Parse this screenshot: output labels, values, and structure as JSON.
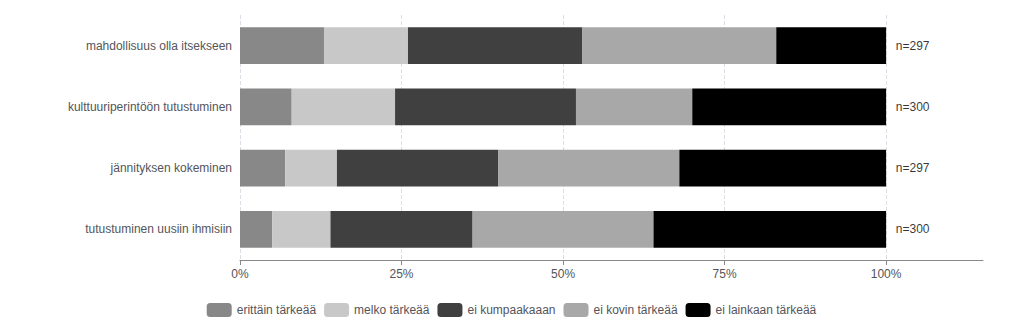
{
  "chart_data": {
    "type": "bar",
    "orientation": "horizontal",
    "stacked": true,
    "categories": [
      "mahdollisuus olla itsekseen",
      "kulttuuriperintöön tutustuminen",
      "jännityksen kokeminen",
      "tutustuminen uusiin ihmisiin"
    ],
    "series": [
      {
        "name": "erittäin tärkeää",
        "color": "#888888",
        "values": [
          13,
          8,
          7,
          5
        ]
      },
      {
        "name": "melko tärkeää",
        "color": "#c8c8c8",
        "values": [
          13,
          16,
          8,
          9
        ]
      },
      {
        "name": "ei kumpaakaaan",
        "color": "#404040",
        "values": [
          27,
          28,
          25,
          22
        ]
      },
      {
        "name": "ei kovin tärkeää",
        "color": "#a8a8a8",
        "values": [
          30,
          18,
          28,
          28
        ]
      },
      {
        "name": "ei lainkaan tärkeää",
        "color": "#000000",
        "values": [
          17,
          30,
          32,
          36
        ]
      }
    ],
    "annotations": [
      {
        "text": "n=297",
        "x": 101.5,
        "category": "mahdollisuus olla itsekseen"
      },
      {
        "text": "n=300",
        "x": 101.5,
        "category": "kulttuuriperintöön tutustuminen"
      },
      {
        "text": "n=297",
        "x": 101.5,
        "category": "jännityksen kokeminen"
      },
      {
        "text": "n=300",
        "x": 101.5,
        "category": "tutustuminen uusiin ihmisiin"
      }
    ],
    "xlim": [
      0,
      115
    ],
    "xticks": [
      {
        "value": 0,
        "label": "0%"
      },
      {
        "value": 25,
        "label": "25%"
      },
      {
        "value": 50,
        "label": "50%"
      },
      {
        "value": 75,
        "label": "75%"
      },
      {
        "value": 100,
        "label": "100%"
      }
    ],
    "grid": true,
    "legend": "bottom"
  }
}
